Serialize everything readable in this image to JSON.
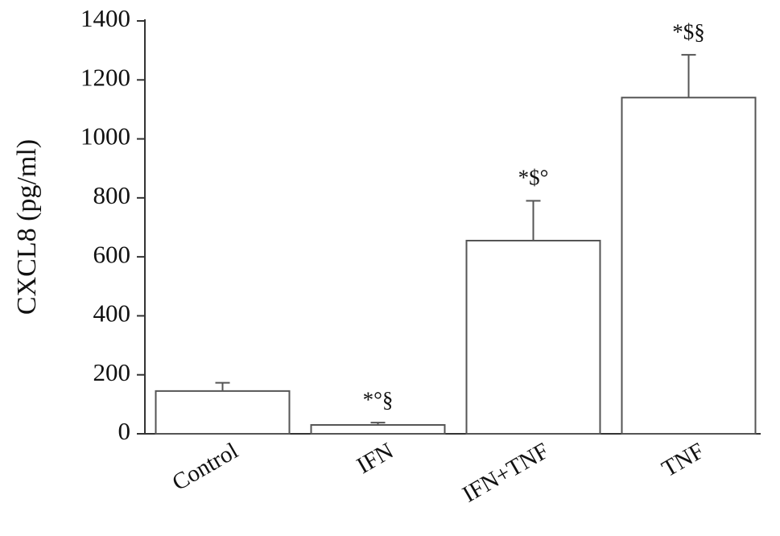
{
  "chart_data": {
    "type": "bar",
    "y_label": "CXCL8 (pg/ml)",
    "categories": [
      "Control",
      "IFN",
      "IFN+TNF",
      "TNF"
    ],
    "values": [
      145,
      30,
      655,
      1140
    ],
    "errors": [
      28,
      8,
      135,
      145
    ],
    "value_annotations": [
      null,
      "*°§",
      "*$°",
      "*$§"
    ],
    "color": "#ffffff",
    "edge_color": "#555555",
    "ylim": [
      0,
      1400
    ],
    "yticks": [
      0,
      200,
      400,
      600,
      800,
      1000,
      1200,
      1400
    ],
    "grid": false
  }
}
